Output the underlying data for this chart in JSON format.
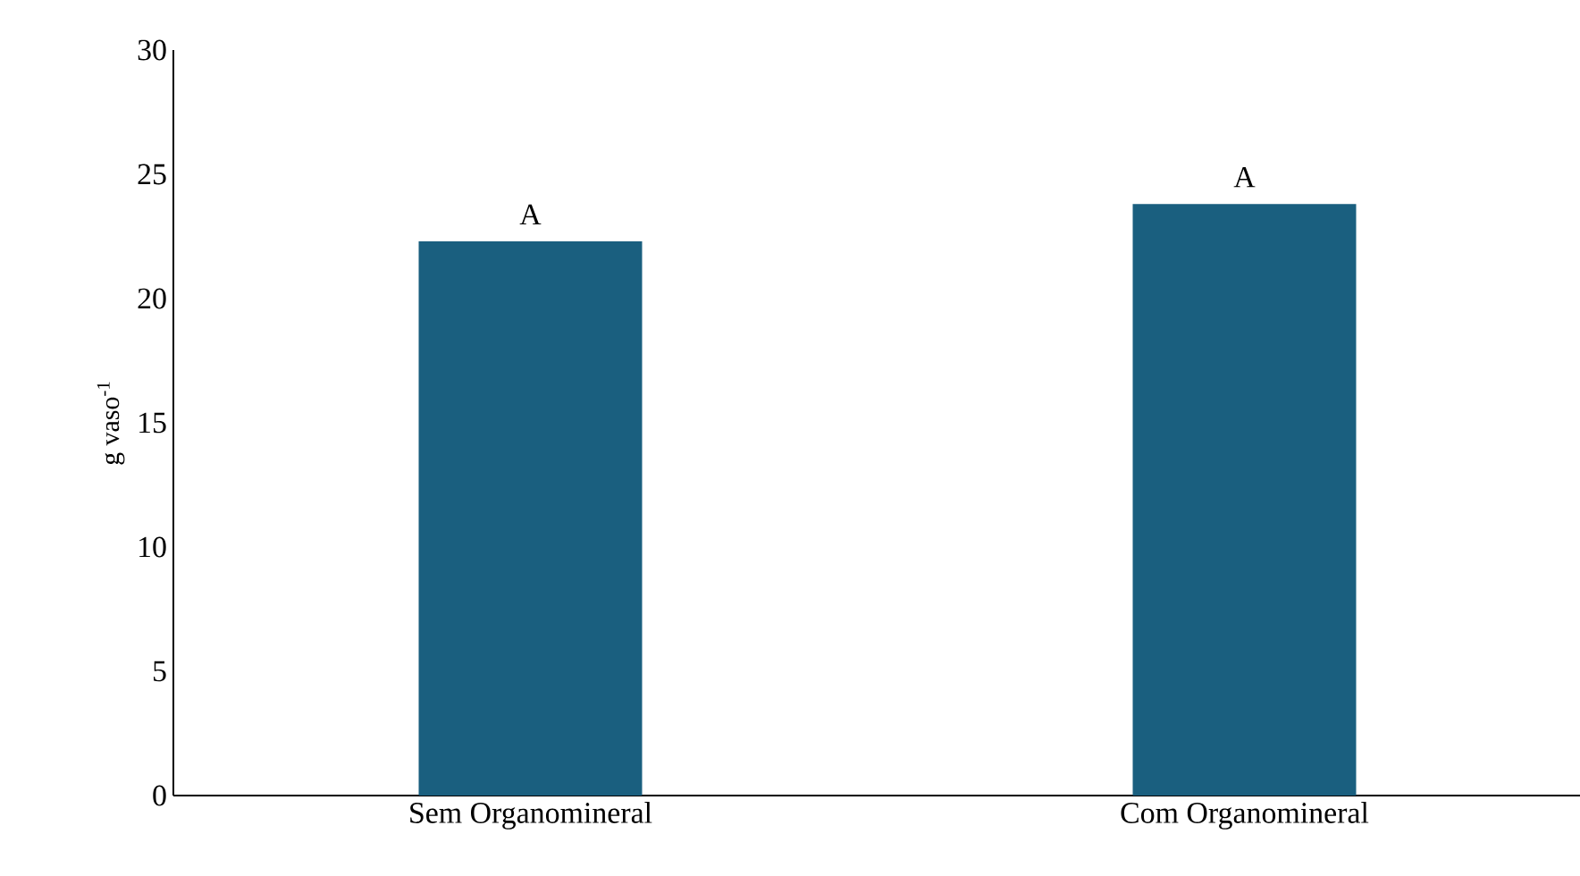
{
  "chart_data": {
    "type": "bar",
    "ylabel": "g vaso$^{-1}$",
    "categories": [
      "Sem Organomineral",
      "Com Organomineral"
    ],
    "values": [
      22.3,
      23.8
    ],
    "color": "#1a5f7f",
    "ylim": [
      0,
      30
    ],
    "yticks": [
      0,
      5,
      10,
      15,
      20,
      25,
      30
    ],
    "annotations": [
      {
        "text": "A",
        "x": "Sem Organomineral",
        "y": 22.3
      },
      {
        "text": "A",
        "x": "Com Organomineral",
        "y": 23.8
      }
    ]
  }
}
